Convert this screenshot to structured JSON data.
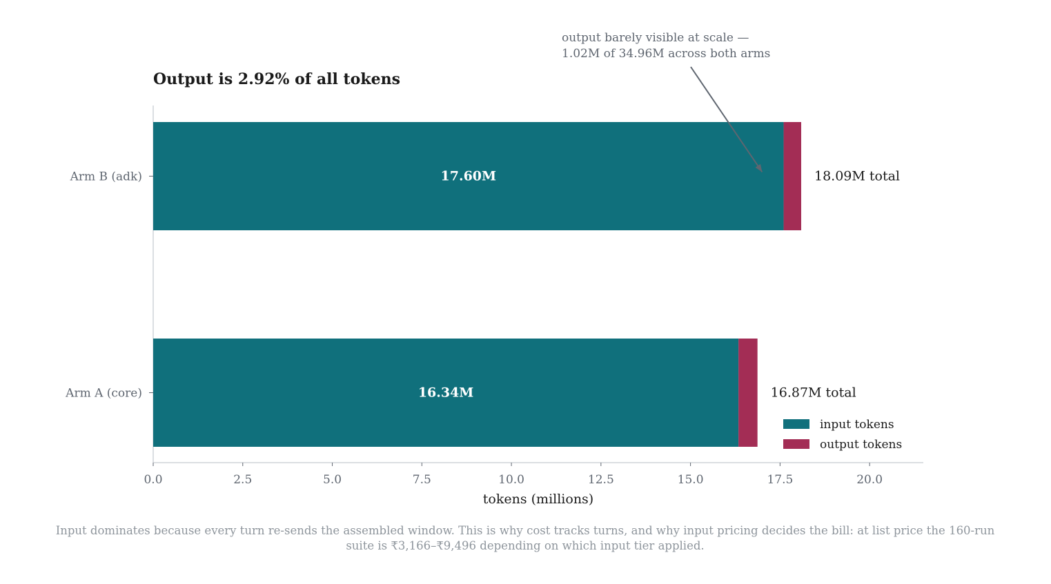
{
  "chart_data": {
    "type": "bar",
    "orientation": "horizontal",
    "stacked": true,
    "title": "Output is 2.92% of all tokens",
    "xlabel": "tokens (millions)",
    "ylabel": "",
    "xlim": [
      0,
      21.5
    ],
    "xticks": [
      "0.0",
      "2.5",
      "5.0",
      "7.5",
      "10.0",
      "12.5",
      "15.0",
      "17.5",
      "20.0"
    ],
    "xtick_values": [
      0,
      2.5,
      5,
      7.5,
      10,
      12.5,
      15,
      17.5,
      20
    ],
    "categories": [
      "Arm A (core)",
      "Arm B (adk)"
    ],
    "series": [
      {
        "name": "input tokens",
        "color": "#10707c",
        "values": [
          16.34,
          17.6
        ]
      },
      {
        "name": "output tokens",
        "color": "#a32d55",
        "values": [
          0.53,
          0.49
        ]
      }
    ],
    "input_labels": [
      "16.34M",
      "17.60M"
    ],
    "total_labels": [
      "16.87M total",
      "18.09M total"
    ],
    "annotation": {
      "lines": [
        "output barely visible at scale —",
        "1.02M of 34.96M across both arms"
      ],
      "target_x": 17.0,
      "target_category": "Arm B (adk)"
    },
    "legend": {
      "position": "lower-right",
      "entries": [
        "input tokens",
        "output tokens"
      ]
    },
    "grid": false,
    "caption_lines": [
      "Input dominates because every turn re-sends the assembled window. This is why cost tracks turns, and why input pricing decides the bill: at list price the 160-run",
      "suite is ₹3,166–₹9,496 depending on which input tier applied."
    ]
  }
}
